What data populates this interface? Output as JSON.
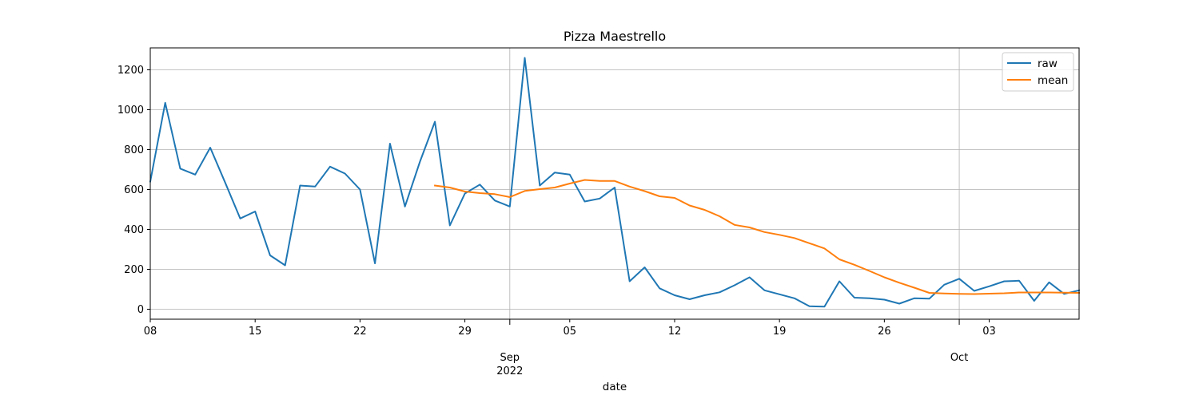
{
  "chart_data": {
    "type": "line",
    "title": "Pizza Maestrello",
    "xlabel": "date",
    "ylabel": "",
    "x_start": "2022-08-08",
    "x_end": "2022-10-09",
    "ylim": [
      -50,
      1310
    ],
    "y_ticks": [
      0,
      200,
      400,
      600,
      800,
      1000,
      1200
    ],
    "x_ticks": [
      {
        "date": "2022-08-08",
        "label": "08",
        "major": false
      },
      {
        "date": "2022-08-15",
        "label": "15",
        "major": false
      },
      {
        "date": "2022-08-22",
        "label": "22",
        "major": false
      },
      {
        "date": "2022-08-29",
        "label": "29",
        "major": false
      },
      {
        "date": "2022-09-01",
        "label": "Sep",
        "label2": "2022",
        "major": true
      },
      {
        "date": "2022-09-05",
        "label": "05",
        "major": false
      },
      {
        "date": "2022-09-12",
        "label": "12",
        "major": false
      },
      {
        "date": "2022-09-19",
        "label": "19",
        "major": false
      },
      {
        "date": "2022-09-26",
        "label": "26",
        "major": false
      },
      {
        "date": "2022-10-01",
        "label": "Oct",
        "major": true
      },
      {
        "date": "2022-10-03",
        "label": "03",
        "major": false
      }
    ],
    "grid": true,
    "legend_position": "top-right",
    "series": [
      {
        "name": "raw",
        "color": "#1f77b4",
        "points": [
          [
            "2022-08-08",
            640
          ],
          [
            "2022-08-09",
            1035
          ],
          [
            "2022-08-10",
            705
          ],
          [
            "2022-08-11",
            675
          ],
          [
            "2022-08-12",
            810
          ],
          [
            "2022-08-13",
            635
          ],
          [
            "2022-08-14",
            455
          ],
          [
            "2022-08-15",
            490
          ],
          [
            "2022-08-16",
            270
          ],
          [
            "2022-08-17",
            220
          ],
          [
            "2022-08-18",
            620
          ],
          [
            "2022-08-19",
            615
          ],
          [
            "2022-08-20",
            715
          ],
          [
            "2022-08-21",
            680
          ],
          [
            "2022-08-22",
            600
          ],
          [
            "2022-08-23",
            230
          ],
          [
            "2022-08-24",
            830
          ],
          [
            "2022-08-25",
            515
          ],
          [
            "2022-08-26",
            740
          ],
          [
            "2022-08-27",
            940
          ],
          [
            "2022-08-28",
            420
          ],
          [
            "2022-08-29",
            580
          ],
          [
            "2022-08-30",
            625
          ],
          [
            "2022-08-31",
            545
          ],
          [
            "2022-09-01",
            515
          ],
          [
            "2022-09-02",
            1260
          ],
          [
            "2022-09-03",
            620
          ],
          [
            "2022-09-04",
            685
          ],
          [
            "2022-09-05",
            675
          ],
          [
            "2022-09-06",
            540
          ],
          [
            "2022-09-07",
            555
          ],
          [
            "2022-09-08",
            610
          ],
          [
            "2022-09-09",
            140
          ],
          [
            "2022-09-10",
            210
          ],
          [
            "2022-09-11",
            105
          ],
          [
            "2022-09-12",
            70
          ],
          [
            "2022-09-13",
            50
          ],
          [
            "2022-09-14",
            70
          ],
          [
            "2022-09-15",
            85
          ],
          [
            "2022-09-16",
            120
          ],
          [
            "2022-09-17",
            160
          ],
          [
            "2022-09-18",
            95
          ],
          [
            "2022-09-19",
            75
          ],
          [
            "2022-09-20",
            55
          ],
          [
            "2022-09-21",
            15
          ],
          [
            "2022-09-22",
            13
          ],
          [
            "2022-09-23",
            140
          ],
          [
            "2022-09-24",
            58
          ],
          [
            "2022-09-25",
            55
          ],
          [
            "2022-09-26",
            48
          ],
          [
            "2022-09-27",
            28
          ],
          [
            "2022-09-28",
            55
          ],
          [
            "2022-09-29",
            53
          ],
          [
            "2022-09-30",
            123
          ],
          [
            "2022-10-01",
            153
          ],
          [
            "2022-10-02",
            92
          ],
          [
            "2022-10-03",
            115
          ],
          [
            "2022-10-04",
            140
          ],
          [
            "2022-10-05",
            143
          ],
          [
            "2022-10-06",
            42
          ],
          [
            "2022-10-07",
            135
          ],
          [
            "2022-10-08",
            77
          ],
          [
            "2022-10-09",
            95
          ]
        ]
      },
      {
        "name": "mean",
        "color": "#ff7f0e",
        "points": [
          [
            "2022-08-27",
            620
          ],
          [
            "2022-08-28",
            610
          ],
          [
            "2022-08-29",
            590
          ],
          [
            "2022-08-30",
            582
          ],
          [
            "2022-08-31",
            577
          ],
          [
            "2022-09-01",
            562
          ],
          [
            "2022-09-02",
            593
          ],
          [
            "2022-09-03",
            602
          ],
          [
            "2022-09-04",
            610
          ],
          [
            "2022-09-05",
            630
          ],
          [
            "2022-09-06",
            648
          ],
          [
            "2022-09-07",
            643
          ],
          [
            "2022-09-08",
            643
          ],
          [
            "2022-09-09",
            615
          ],
          [
            "2022-09-10",
            592
          ],
          [
            "2022-09-11",
            566
          ],
          [
            "2022-09-12",
            558
          ],
          [
            "2022-09-13",
            520
          ],
          [
            "2022-09-14",
            498
          ],
          [
            "2022-09-15",
            466
          ],
          [
            "2022-09-16",
            423
          ],
          [
            "2022-09-17",
            410
          ],
          [
            "2022-09-18",
            387
          ],
          [
            "2022-09-19",
            373
          ],
          [
            "2022-09-20",
            357
          ],
          [
            "2022-09-21",
            331
          ],
          [
            "2022-09-22",
            305
          ],
          [
            "2022-09-23",
            250
          ],
          [
            "2022-09-24",
            223
          ],
          [
            "2022-09-25",
            192
          ],
          [
            "2022-09-26",
            160
          ],
          [
            "2022-09-27",
            133
          ],
          [
            "2022-09-28",
            108
          ],
          [
            "2022-09-29",
            82
          ],
          [
            "2022-09-30",
            79
          ],
          [
            "2022-10-01",
            77
          ],
          [
            "2022-10-02",
            76
          ],
          [
            "2022-10-03",
            78
          ],
          [
            "2022-10-04",
            80
          ],
          [
            "2022-10-05",
            84
          ],
          [
            "2022-10-06",
            84
          ],
          [
            "2022-10-07",
            84
          ],
          [
            "2022-10-08",
            83
          ],
          [
            "2022-10-09",
            82
          ]
        ]
      }
    ]
  }
}
